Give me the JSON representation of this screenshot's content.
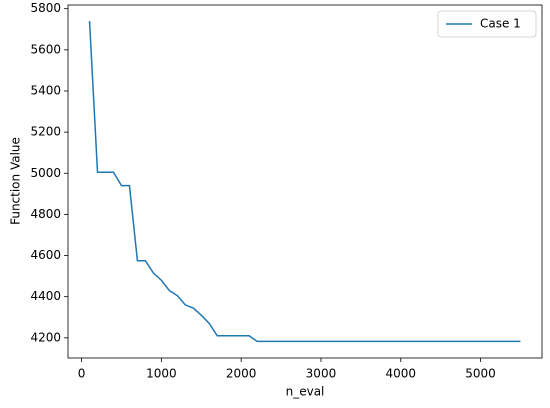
{
  "chart_data": {
    "type": "line",
    "xlabel": "n_eval",
    "ylabel": "Function Value",
    "x": [
      100,
      200,
      300,
      400,
      500,
      600,
      700,
      800,
      900,
      1000,
      1100,
      1200,
      1300,
      1400,
      1500,
      1600,
      1700,
      1800,
      1900,
      2000,
      2100,
      2200,
      2300,
      2400,
      2500,
      2600,
      2700,
      2800,
      2900,
      3000,
      3100,
      3200,
      3300,
      3400,
      3500,
      3600,
      3700,
      3800,
      3900,
      4000,
      4100,
      4200,
      4300,
      4400,
      4500,
      4600,
      4700,
      4800,
      4900,
      5000,
      5100,
      5200,
      5300,
      5400,
      5500
    ],
    "series": [
      {
        "name": "Case 1",
        "color": "#1f77b4",
        "values": [
          5740,
          5005,
          5005,
          5005,
          4940,
          4940,
          4575,
          4575,
          4515,
          4480,
          4430,
          4405,
          4360,
          4345,
          4310,
          4270,
          4210,
          4210,
          4210,
          4210,
          4210,
          4183,
          4183,
          4183,
          4183,
          4183,
          4183,
          4183,
          4183,
          4183,
          4183,
          4183,
          4183,
          4183,
          4183,
          4183,
          4183,
          4183,
          4183,
          4183,
          4183,
          4183,
          4183,
          4183,
          4183,
          4183,
          4183,
          4183,
          4183,
          4183,
          4183,
          4183,
          4183,
          4183,
          4183
        ]
      }
    ],
    "xlim": [
      -170,
      5770
    ],
    "xticks": [
      0,
      1000,
      2000,
      3000,
      4000,
      5000
    ],
    "ylim": [
      4102,
      5818
    ],
    "yticks": [
      4200,
      4400,
      4600,
      4800,
      5000,
      5200,
      5400,
      5600,
      5800
    ],
    "legend": "upper-right"
  }
}
